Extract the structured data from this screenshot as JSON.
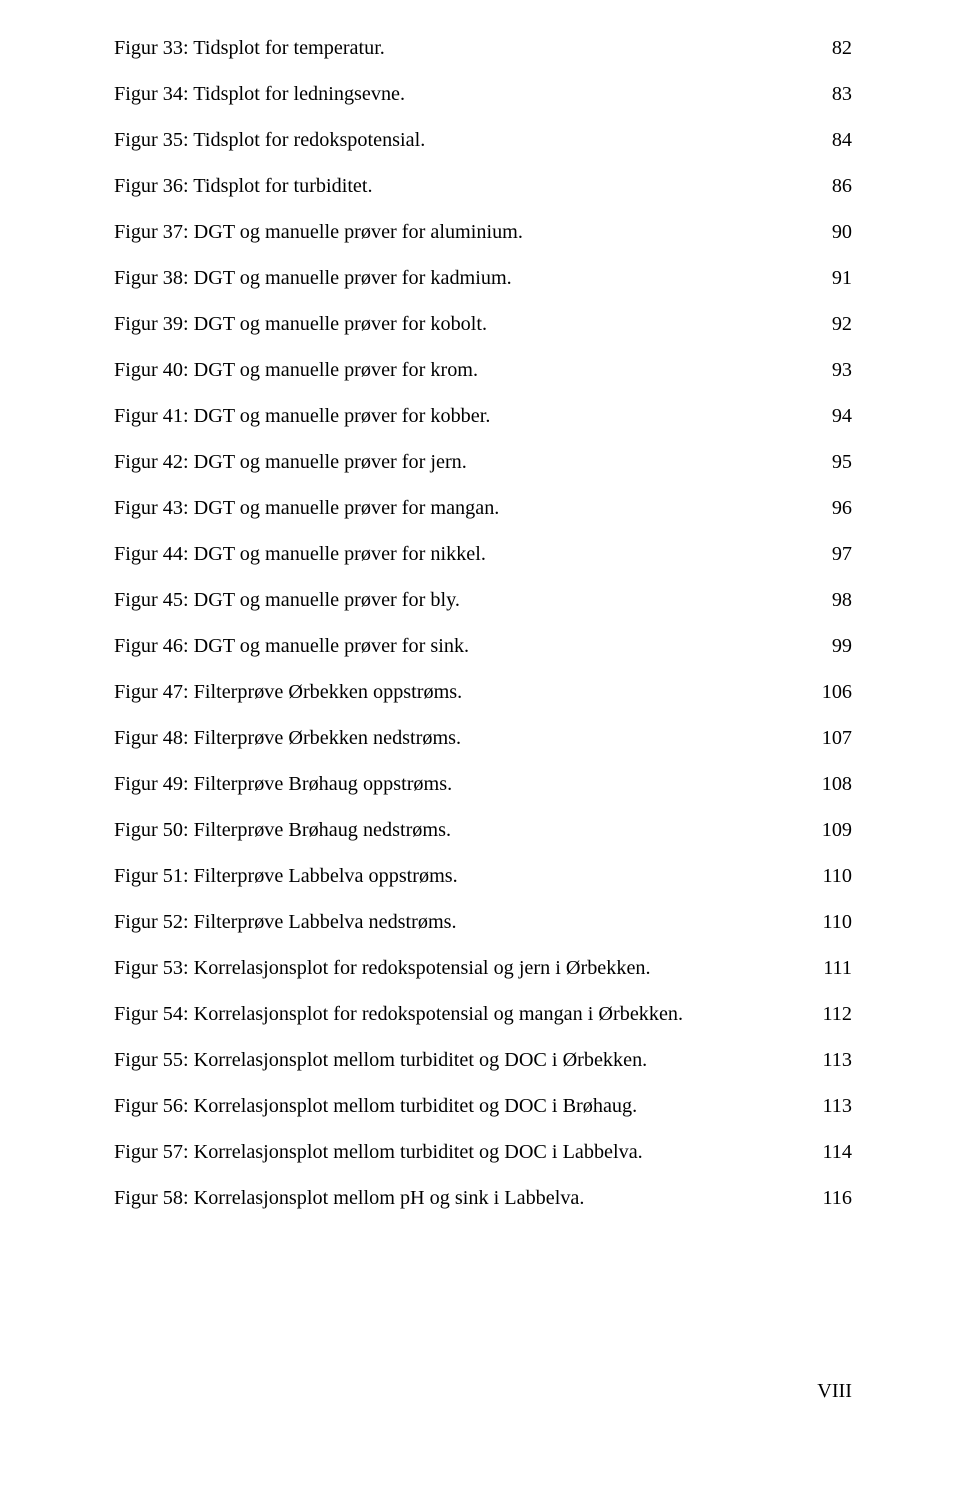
{
  "toc": {
    "entries": [
      {
        "label": "Figur 33: Tidsplot for temperatur.",
        "page": "82"
      },
      {
        "label": "Figur 34: Tidsplot for ledningsevne.",
        "page": "83"
      },
      {
        "label": "Figur 35: Tidsplot for redokspotensial.",
        "page": "84"
      },
      {
        "label": "Figur 36: Tidsplot for turbiditet.",
        "page": "86"
      },
      {
        "label": "Figur 37: DGT og manuelle prøver for aluminium.",
        "page": "90"
      },
      {
        "label": "Figur 38: DGT og manuelle prøver for kadmium.",
        "page": "91"
      },
      {
        "label": "Figur 39: DGT og manuelle prøver for kobolt.",
        "page": "92"
      },
      {
        "label": "Figur 40: DGT og manuelle prøver for krom.",
        "page": "93"
      },
      {
        "label": "Figur 41: DGT og manuelle prøver for kobber.",
        "page": "94"
      },
      {
        "label": "Figur 42: DGT og manuelle prøver for jern.",
        "page": "95"
      },
      {
        "label": "Figur 43: DGT og manuelle prøver for mangan.",
        "page": "96"
      },
      {
        "label": "Figur 44: DGT og manuelle prøver for nikkel.",
        "page": "97"
      },
      {
        "label": "Figur 45: DGT og manuelle prøver for bly.",
        "page": "98"
      },
      {
        "label": "Figur 46: DGT og manuelle prøver for sink.",
        "page": "99"
      },
      {
        "label": "Figur 47: Filterprøve Ørbekken oppstrøms.",
        "page": "106"
      },
      {
        "label": "Figur 48: Filterprøve Ørbekken nedstrøms.",
        "page": "107"
      },
      {
        "label": "Figur 49: Filterprøve Brøhaug oppstrøms.",
        "page": "108"
      },
      {
        "label": "Figur 50: Filterprøve Brøhaug nedstrøms.",
        "page": "109"
      },
      {
        "label": "Figur 51: Filterprøve Labbelva oppstrøms.",
        "page": "110"
      },
      {
        "label": "Figur 52: Filterprøve Labbelva nedstrøms.",
        "page": "110"
      },
      {
        "label": "Figur 53: Korrelasjonsplot for redokspotensial og jern i Ørbekken.",
        "page": "111"
      },
      {
        "label": "Figur 54: Korrelasjonsplot for redokspotensial og mangan i Ørbekken.",
        "page": "112"
      },
      {
        "label": "Figur 55: Korrelasjonsplot mellom turbiditet og DOC i Ørbekken.",
        "page": "113"
      },
      {
        "label": "Figur 56: Korrelasjonsplot mellom turbiditet og DOC i Brøhaug.",
        "page": "113"
      },
      {
        "label": "Figur 57: Korrelasjonsplot mellom turbiditet og DOC i Labbelva.",
        "page": "114"
      },
      {
        "label": "Figur 58: Korrelasjonsplot mellom pH og sink i Labbelva.",
        "page": "116"
      }
    ]
  },
  "footer": {
    "page_number": "VIII"
  },
  "style": {
    "font_family": "Times New Roman",
    "font_size_pt": 12,
    "text_color": "#000000",
    "background_color": "#ffffff"
  }
}
